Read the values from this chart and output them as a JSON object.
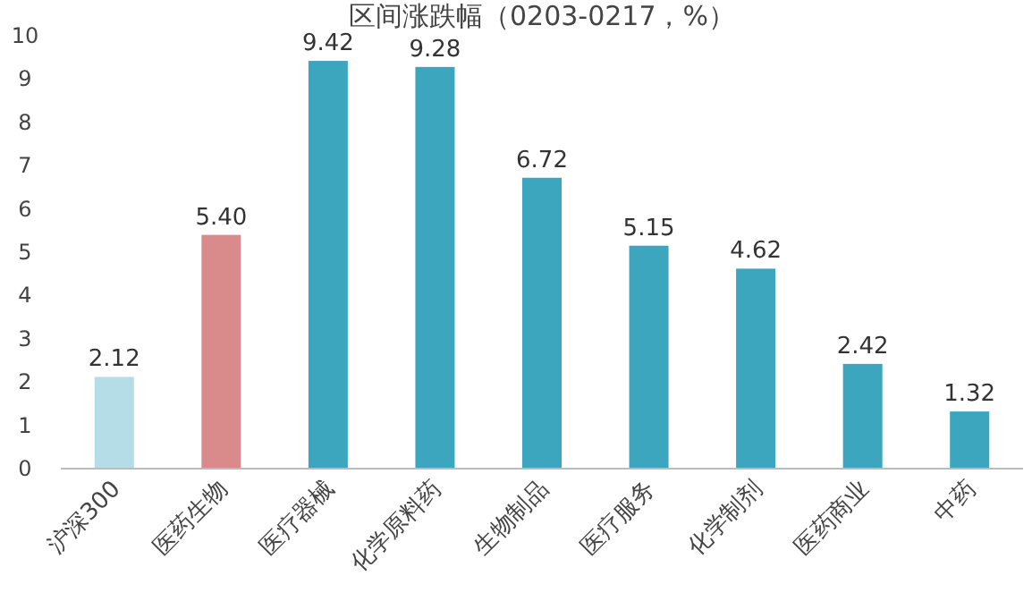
{
  "chart_data": {
    "type": "bar",
    "title": "区间涨跌幅（0203-0217，%）",
    "categories": [
      "沪深300",
      "医药生物",
      "医疗器械",
      "化学原料药",
      "生物制品",
      "医疗服务",
      "化学制剂",
      "医药商业",
      "中药"
    ],
    "values": [
      2.12,
      5.4,
      9.42,
      9.28,
      6.72,
      5.15,
      4.62,
      2.42,
      1.32
    ],
    "value_labels": [
      "2.12",
      "5.40",
      "9.42",
      "9.28",
      "6.72",
      "5.15",
      "4.62",
      "2.42",
      "1.32"
    ],
    "colors": [
      "#b5dde8",
      "#d98b8b",
      "#3ba6bd",
      "#3ba6bd",
      "#3ba6bd",
      "#3ba6bd",
      "#3ba6bd",
      "#3ba6bd",
      "#3ba6bd"
    ],
    "ylim": [
      0,
      10
    ],
    "yticks": [
      0,
      1,
      2,
      3,
      4,
      5,
      6,
      7,
      8,
      9,
      10
    ]
  }
}
